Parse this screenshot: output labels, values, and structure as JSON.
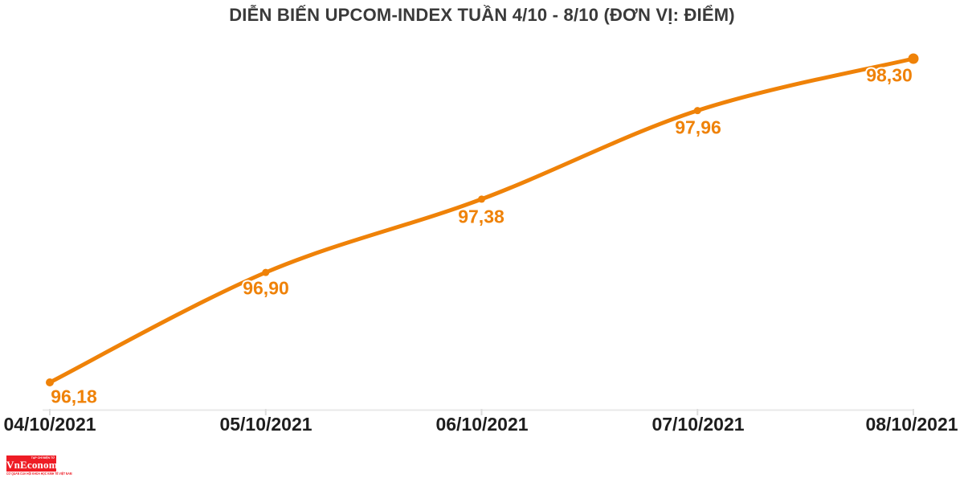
{
  "header": {
    "title": "DIỄN BIẾN UPCOM-INDEX TUẦN 4/10 - 8/10 (ĐƠN VỊ: ĐIỂM)"
  },
  "chart_data": {
    "type": "line",
    "title": "DIỄN BIẾN UPCOM-INDEX TUẦN 4/10 - 8/10 (ĐƠN VỊ: ĐIỂM)",
    "categories": [
      "04/10/2021",
      "05/10/2021",
      "06/10/2021",
      "07/10/2021",
      "08/10/2021"
    ],
    "values": [
      96.18,
      96.9,
      97.38,
      97.96,
      98.3
    ],
    "point_labels": [
      "96,18",
      "96,90",
      "97,38",
      "97,96",
      "98,30"
    ],
    "ylim": [
      96.18,
      98.3
    ],
    "grid": false,
    "legend": false,
    "smooth": true,
    "line_color": "#EF8208",
    "marker_color": "#EF8208",
    "label_color": "#EF8208",
    "axis_line_color": "#E8E8E8",
    "tick_color": "#DCDCDC",
    "x_label_color": "#1E1E1E",
    "title_color": "#3A3A3A"
  },
  "footer": {
    "logo": {
      "top_text": "TẠP CHÍ ĐIỆN TỬ",
      "brand": "VnEconomy",
      "tagline": "CƠ QUAN CỦA HỘI KHOA HỌC KINH TẾ VIỆT NAM",
      "bg_color": "#EE1C25"
    }
  }
}
